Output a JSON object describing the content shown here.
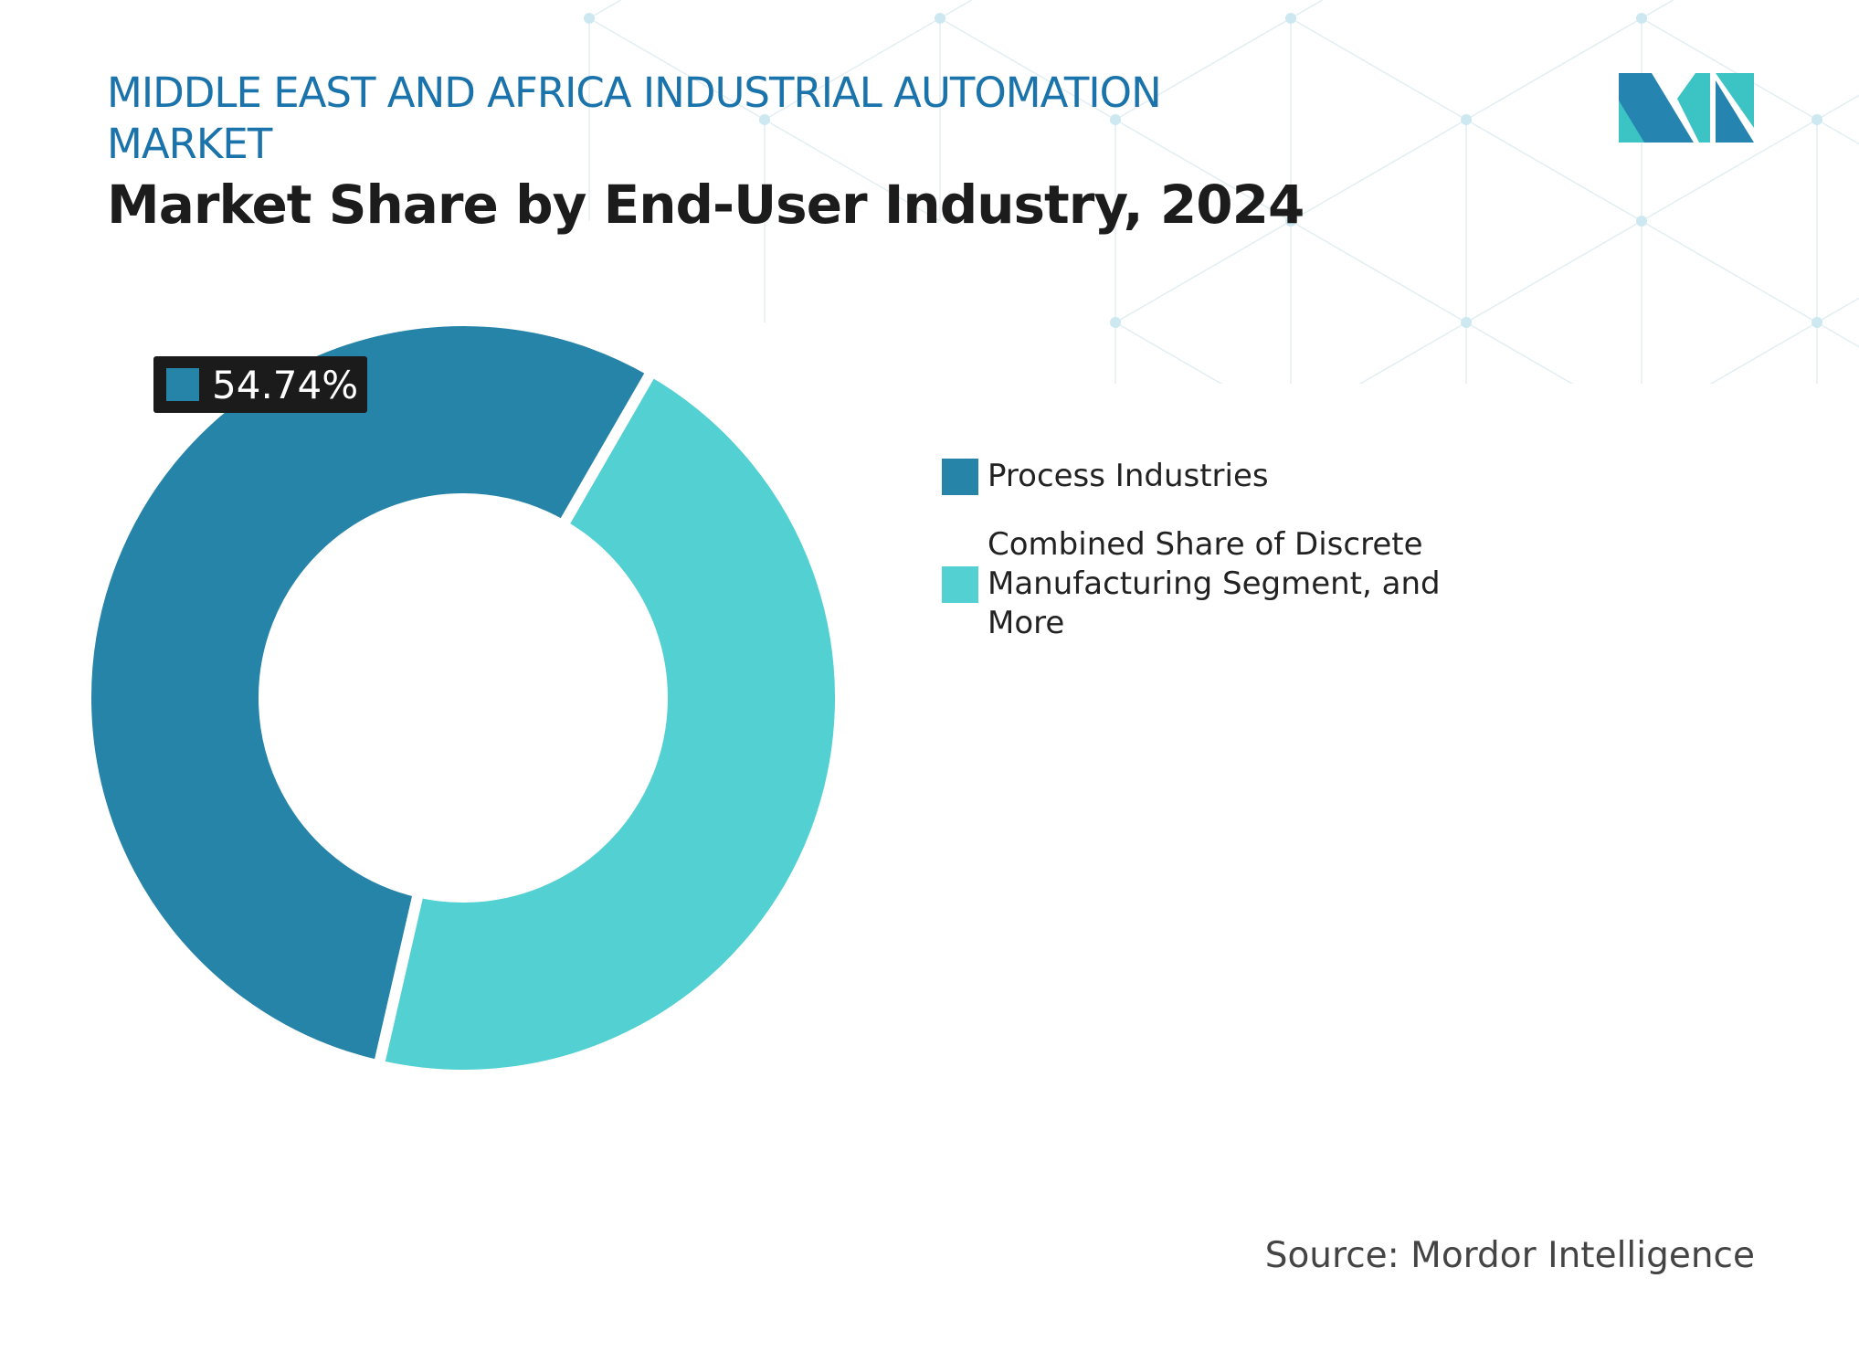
{
  "header": {
    "title": "MIDDLE EAST AND AFRICA INDUSTRIAL AUTOMATION MARKET",
    "subtitle": "Market Share by End-User Industry, 2024"
  },
  "logo": {
    "brand_colors": [
      "#2585b0",
      "#3cc4c4"
    ]
  },
  "source": "Source: Mordor Intelligence",
  "chart_data": {
    "type": "pie",
    "variant": "donut",
    "title": "Market Share by End-User Industry, 2024",
    "series": [
      {
        "name": "Process Industries",
        "value": 54.74,
        "color": "#2684a8"
      },
      {
        "name": "Combined Share of Discrete Manufacturing Segment, and More",
        "value": 45.26,
        "color": "#52d0d2"
      }
    ],
    "data_labels": [
      {
        "series": "Process Industries",
        "text": "54.74%"
      }
    ],
    "legend_position": "right"
  }
}
